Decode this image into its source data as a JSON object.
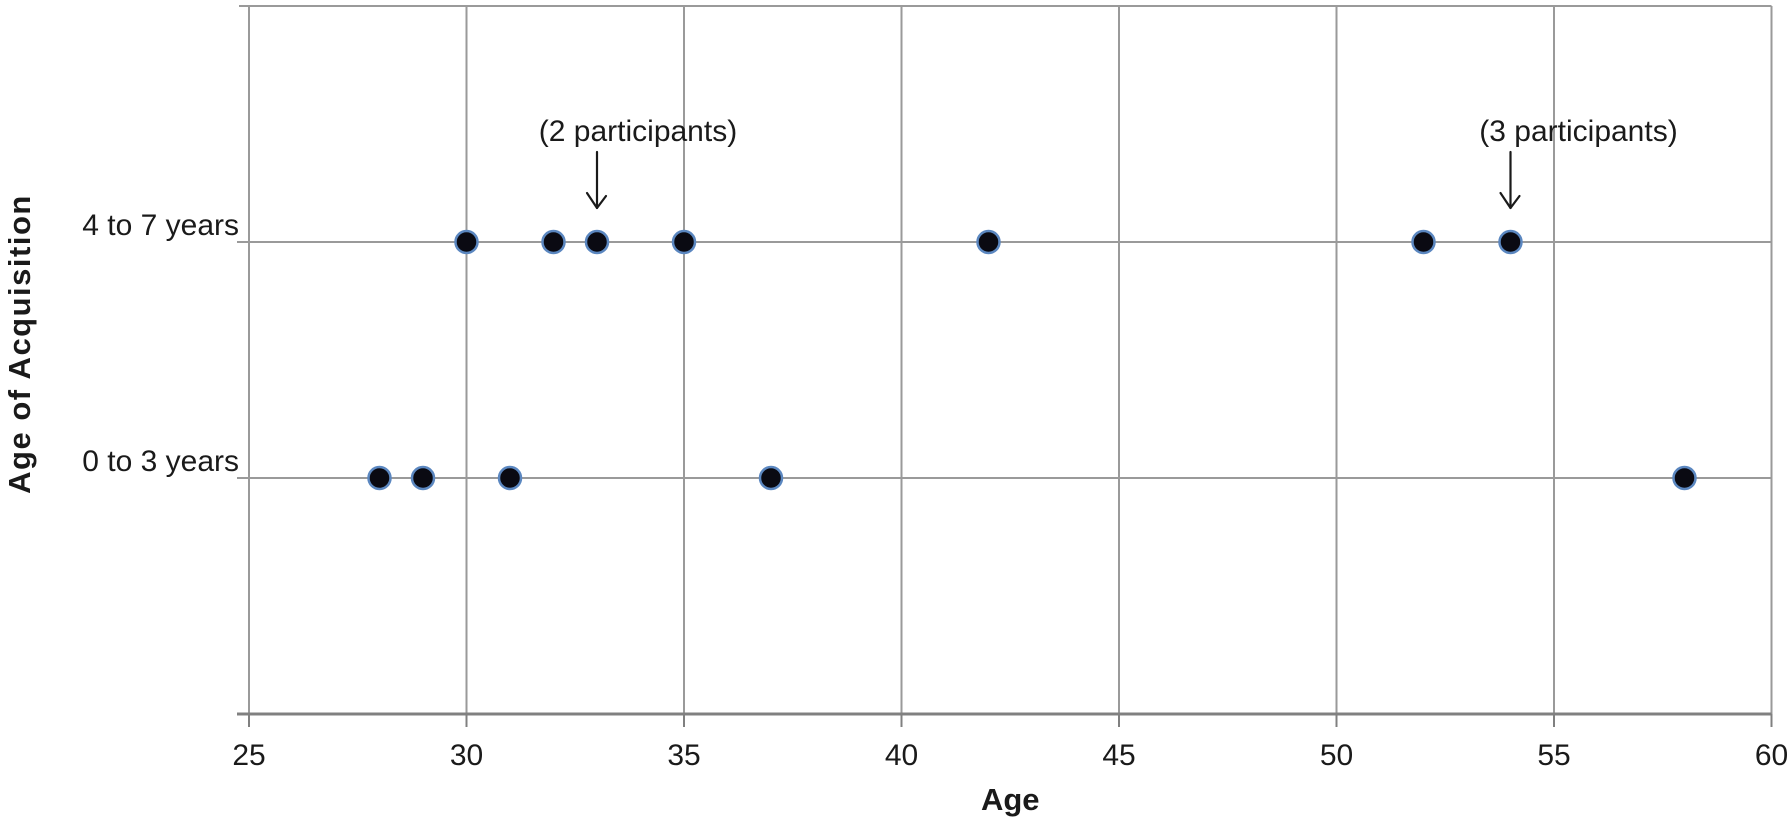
{
  "chart_data": {
    "type": "scatter",
    "title": "",
    "xlabel": "Age",
    "ylabel": "Age of Acquisition",
    "xlim": [
      25,
      60
    ],
    "x_ticks": [
      25,
      30,
      35,
      40,
      45,
      50,
      55,
      60
    ],
    "grid": true,
    "legend": "none",
    "categories": [
      "4 to 7 years",
      "0 to 3 years"
    ],
    "series": [
      {
        "name": "4 to 7 years",
        "x": [
          30,
          32,
          33,
          35,
          42,
          52,
          54
        ]
      },
      {
        "name": "0 to 3 years",
        "x": [
          28,
          29,
          31,
          37,
          58
        ]
      }
    ],
    "annotations": [
      {
        "label": "(2 participants)",
        "target_age": 33,
        "target_category": "4 to 7 years",
        "text_dx": 41
      },
      {
        "label": "(3 participants)",
        "target_age": 54,
        "target_category": "4 to 7 years",
        "text_dx": 68
      }
    ],
    "colors": {
      "marker_fill": "#0a0a12",
      "marker_edge": "#5b87c0",
      "grid_line": "#9a9a9a",
      "axis_line": "#808080",
      "text": "#1a1a1a"
    }
  }
}
